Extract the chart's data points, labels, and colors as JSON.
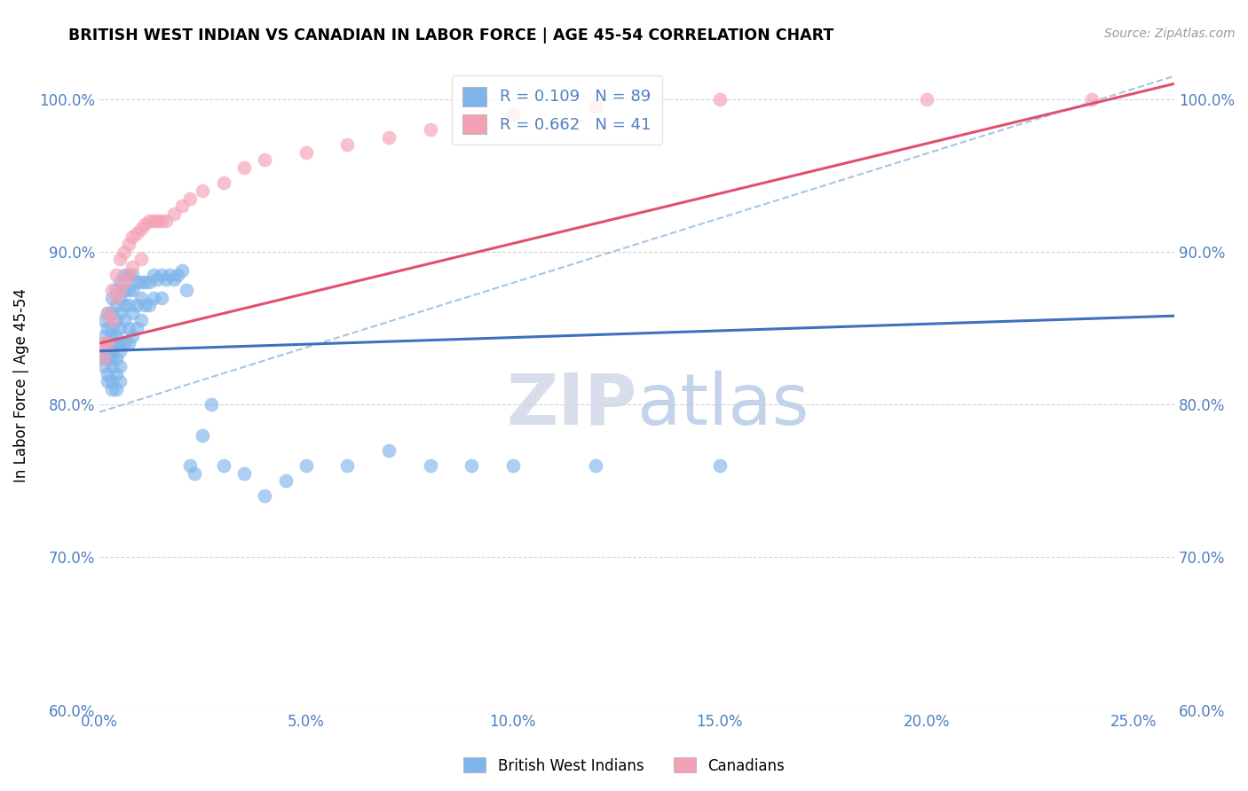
{
  "title": "BRITISH WEST INDIAN VS CANADIAN IN LABOR FORCE | AGE 45-54 CORRELATION CHART",
  "source": "Source: ZipAtlas.com",
  "xlabel": "",
  "ylabel": "In Labor Force | Age 45-54",
  "xlim": [
    0.0,
    0.26
  ],
  "ylim": [
    0.6,
    1.025
  ],
  "x_ticks": [
    0.0,
    0.05,
    0.1,
    0.15,
    0.2,
    0.25
  ],
  "y_ticks": [
    0.6,
    0.7,
    0.8,
    0.9,
    1.0
  ],
  "legend_r1": "R = 0.109",
  "legend_n1": "N = 89",
  "legend_r2": "R = 0.662",
  "legend_n2": "N = 41",
  "watermark_zip": "ZIP",
  "watermark_atlas": "atlas",
  "blue_color": "#7EB4EA",
  "pink_color": "#F4A0B5",
  "blue_line_color": "#3F6FBF",
  "pink_line_color": "#E05070",
  "dashed_line_color": "#90B8DC",
  "axis_color": "#5080C0",
  "grid_color": "#C8C8C8",
  "background": "#FFFFFF",
  "bwi_x": [
    0.001,
    0.001,
    0.001,
    0.001,
    0.001,
    0.002,
    0.002,
    0.002,
    0.002,
    0.002,
    0.002,
    0.002,
    0.003,
    0.003,
    0.003,
    0.003,
    0.003,
    0.003,
    0.003,
    0.003,
    0.003,
    0.003,
    0.004,
    0.004,
    0.004,
    0.004,
    0.004,
    0.004,
    0.004,
    0.004,
    0.005,
    0.005,
    0.005,
    0.005,
    0.005,
    0.005,
    0.005,
    0.005,
    0.006,
    0.006,
    0.006,
    0.006,
    0.006,
    0.007,
    0.007,
    0.007,
    0.007,
    0.007,
    0.008,
    0.008,
    0.008,
    0.008,
    0.009,
    0.009,
    0.009,
    0.01,
    0.01,
    0.01,
    0.011,
    0.011,
    0.012,
    0.012,
    0.013,
    0.013,
    0.014,
    0.015,
    0.015,
    0.016,
    0.017,
    0.018,
    0.019,
    0.02,
    0.021,
    0.022,
    0.023,
    0.025,
    0.027,
    0.03,
    0.035,
    0.04,
    0.045,
    0.05,
    0.06,
    0.07,
    0.08,
    0.09,
    0.1,
    0.12,
    0.15
  ],
  "bwi_y": [
    0.855,
    0.845,
    0.835,
    0.83,
    0.825,
    0.86,
    0.85,
    0.84,
    0.835,
    0.83,
    0.82,
    0.815,
    0.87,
    0.86,
    0.85,
    0.845,
    0.84,
    0.835,
    0.83,
    0.825,
    0.815,
    0.81,
    0.875,
    0.865,
    0.855,
    0.845,
    0.84,
    0.83,
    0.82,
    0.81,
    0.88,
    0.87,
    0.86,
    0.85,
    0.84,
    0.835,
    0.825,
    0.815,
    0.885,
    0.875,
    0.865,
    0.855,
    0.84,
    0.885,
    0.875,
    0.865,
    0.85,
    0.84,
    0.885,
    0.875,
    0.86,
    0.845,
    0.88,
    0.865,
    0.85,
    0.88,
    0.87,
    0.855,
    0.88,
    0.865,
    0.88,
    0.865,
    0.885,
    0.87,
    0.882,
    0.885,
    0.87,
    0.882,
    0.885,
    0.882,
    0.885,
    0.888,
    0.875,
    0.76,
    0.755,
    0.78,
    0.8,
    0.76,
    0.755,
    0.74,
    0.75,
    0.76,
    0.76,
    0.77,
    0.76,
    0.76,
    0.76,
    0.76,
    0.76
  ],
  "can_x": [
    0.001,
    0.001,
    0.002,
    0.002,
    0.003,
    0.003,
    0.004,
    0.004,
    0.005,
    0.005,
    0.006,
    0.006,
    0.007,
    0.007,
    0.008,
    0.008,
    0.009,
    0.01,
    0.01,
    0.011,
    0.012,
    0.013,
    0.014,
    0.015,
    0.016,
    0.018,
    0.02,
    0.022,
    0.025,
    0.03,
    0.035,
    0.04,
    0.05,
    0.06,
    0.07,
    0.08,
    0.1,
    0.12,
    0.15,
    0.2,
    0.24
  ],
  "can_y": [
    0.84,
    0.83,
    0.86,
    0.84,
    0.875,
    0.855,
    0.885,
    0.87,
    0.895,
    0.875,
    0.9,
    0.88,
    0.905,
    0.885,
    0.91,
    0.89,
    0.912,
    0.915,
    0.895,
    0.918,
    0.92,
    0.92,
    0.92,
    0.92,
    0.92,
    0.925,
    0.93,
    0.935,
    0.94,
    0.945,
    0.955,
    0.96,
    0.965,
    0.97,
    0.975,
    0.98,
    0.99,
    0.995,
    1.0,
    1.0,
    1.0
  ],
  "bwi_line_x": [
    0.0,
    0.26
  ],
  "bwi_line_y": [
    0.835,
    0.858
  ],
  "can_line_x": [
    0.0,
    0.26
  ],
  "can_line_y": [
    0.84,
    1.01
  ],
  "dashed_line_x": [
    0.0,
    0.26
  ],
  "dashed_line_y": [
    0.795,
    1.015
  ]
}
